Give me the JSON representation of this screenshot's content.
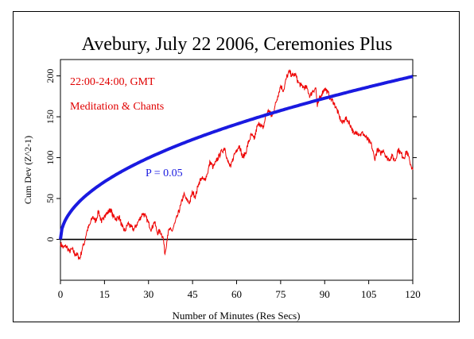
{
  "chart_data": {
    "type": "line",
    "title": "Avebury, July 22 2006, Ceremonies Plus",
    "xlabel": "Number of Minutes (Res Secs)",
    "ylabel": "Cum Dev (Z^2-1)",
    "xlim": [
      0,
      120
    ],
    "ylim": [
      -50,
      220
    ],
    "x_ticks": [
      0,
      15,
      30,
      45,
      60,
      75,
      90,
      105,
      120
    ],
    "y_ticks": [
      0,
      50,
      100,
      150,
      200
    ],
    "grid": false,
    "annotations": [
      {
        "text": "22:00-24:00, GMT",
        "color": "#e00000"
      },
      {
        "text": "Meditation & Chants",
        "color": "#e00000"
      },
      {
        "text": "P = 0.05",
        "color": "#1a1ae0"
      }
    ],
    "series": [
      {
        "color": "#ee0000",
        "x": [
          0,
          1,
          2,
          3,
          4,
          5,
          6,
          6.6,
          7.5,
          8,
          9,
          10,
          11,
          12,
          13,
          14,
          15,
          16,
          17,
          18,
          19,
          20,
          21,
          22,
          23,
          24,
          25,
          26,
          27,
          28,
          29,
          30,
          31,
          32,
          33,
          34,
          35,
          35.6,
          36.5,
          37,
          38,
          39,
          40,
          41,
          42,
          43,
          44,
          45,
          46,
          47,
          48,
          49,
          50,
          51,
          52,
          53,
          54,
          55,
          56,
          57,
          58,
          59,
          60,
          61,
          62,
          63,
          64,
          65,
          66,
          67,
          68,
          69,
          70,
          71,
          72,
          73,
          74,
          75,
          76,
          77,
          78,
          79,
          80,
          81,
          82,
          83,
          84,
          85,
          86,
          87,
          87.5,
          88,
          89,
          90,
          91,
          92,
          93,
          94,
          95,
          96,
          97,
          98,
          99,
          100,
          101,
          102,
          103,
          104,
          105,
          106,
          107,
          108,
          109,
          110,
          111,
          112,
          113,
          114,
          115,
          116,
          117,
          118,
          119,
          120
        ],
        "values": [
          -5,
          -10,
          -8,
          -15,
          -12,
          -18,
          -20,
          -24,
          -10,
          -6,
          10,
          18,
          28,
          22,
          35,
          20,
          30,
          32,
          37,
          28,
          25,
          28,
          15,
          10,
          20,
          15,
          12,
          18,
          25,
          32,
          28,
          20,
          12,
          22,
          8,
          10,
          2,
          -18,
          5,
          12,
          10,
          20,
          30,
          42,
          55,
          48,
          45,
          58,
          52,
          68,
          75,
          72,
          80,
          95,
          88,
          95,
          102,
          108,
          112,
          95,
          88,
          102,
          110,
          115,
          100,
          105,
          118,
          128,
          122,
          138,
          142,
          135,
          152,
          158,
          150,
          162,
          175,
          188,
          182,
          198,
          205,
          200,
          202,
          192,
          188,
          186,
          185,
          175,
          182,
          185,
          162,
          170,
          178,
          185,
          180,
          172,
          168,
          160,
          150,
          142,
          148,
          145,
          138,
          128,
          132,
          128,
          130,
          125,
          120,
          115,
          98,
          110,
          105,
          110,
          100,
          98,
          102,
          96,
          110,
          105,
          100,
          108,
          95,
          85
        ]
      },
      {
        "color": "#1a1ae0",
        "function": "sqrt",
        "comment_free_scale": 18.2,
        "x": [
          0,
          0.5,
          1,
          2,
          3,
          5,
          7.5,
          10,
          15,
          20,
          25,
          30,
          35,
          40,
          45,
          50,
          55,
          60,
          65,
          70,
          75,
          80,
          85,
          90,
          95,
          100,
          105,
          110,
          115,
          120
        ],
        "values": [
          0,
          12.9,
          18.2,
          25.7,
          31.5,
          40.7,
          49.8,
          57.6,
          70.5,
          81.4,
          91.0,
          99.7,
          107.7,
          115.1,
          122.1,
          128.7,
          135.0,
          141.0,
          146.7,
          152.3,
          157.6,
          162.8,
          167.8,
          172.7,
          177.4,
          182.0,
          186.5,
          190.9,
          195.2,
          199.4
        ]
      }
    ]
  }
}
